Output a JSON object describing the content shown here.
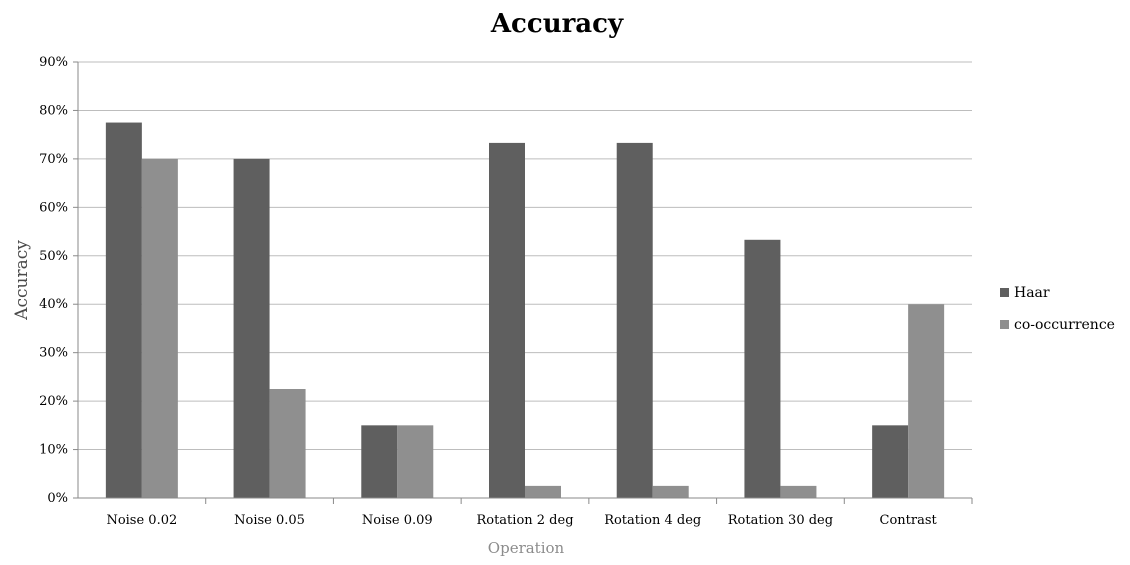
{
  "chart_data": {
    "type": "bar",
    "title": "Accuracy",
    "xlabel": "Operation",
    "ylabel": "Accuracy",
    "ylim": [
      0,
      90
    ],
    "ytick_step": 10,
    "ytick_suffix": "%",
    "grid": true,
    "legend_position": "right",
    "categories": [
      "Noise 0.02",
      "Noise 0.05",
      "Noise 0.09",
      "Rotation 2 deg",
      "Rotation 4 deg",
      "Rotation 30 deg",
      "Contrast"
    ],
    "series": [
      {
        "name": "Haar",
        "color": "#5f5f5f",
        "values": [
          77.5,
          70,
          15,
          73.3,
          73.3,
          53.3,
          15
        ]
      },
      {
        "name": "co-occurrence",
        "color": "#8f8f8f",
        "values": [
          70,
          22.5,
          15,
          2.5,
          2.5,
          2.5,
          40
        ]
      }
    ]
  }
}
